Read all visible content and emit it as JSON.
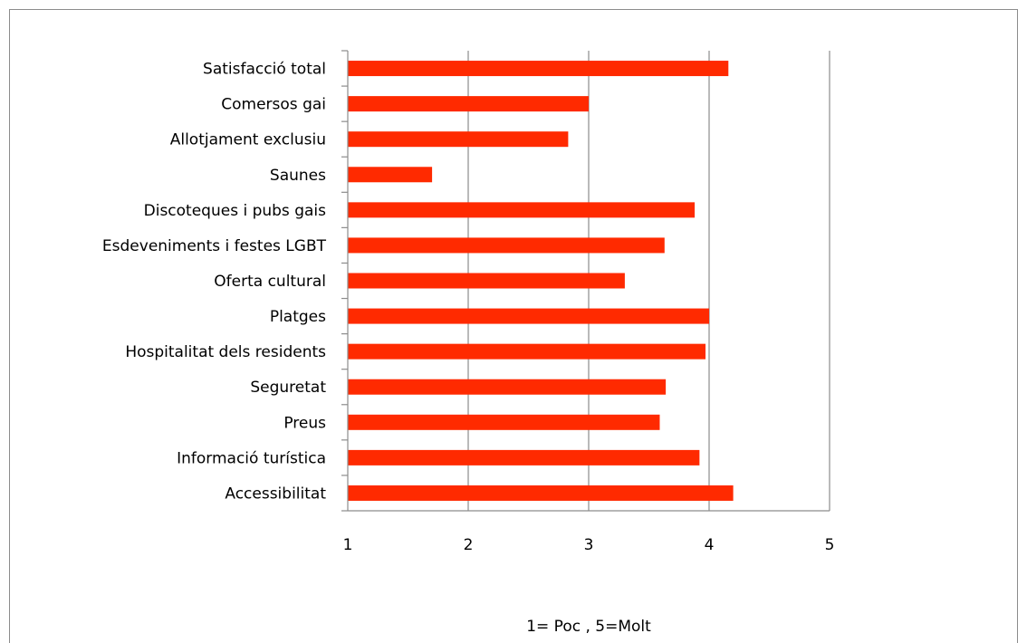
{
  "chart_data": {
    "type": "bar",
    "orientation": "horizontal",
    "categories": [
      "Satisfacció total",
      "Comersos gai",
      "Allotjament exclusiu",
      "Saunes",
      "Discoteques i pubs gais",
      "Esdeveniments i festes LGBT",
      "Oferta cultural",
      "Platges",
      "Hospitalitat dels residents",
      "Seguretat",
      "Preus",
      "Informació turística",
      "Accessibilitat"
    ],
    "values": [
      4.16,
      3.0,
      2.83,
      1.7,
      3.88,
      3.63,
      3.3,
      4.0,
      3.97,
      3.64,
      3.59,
      3.92,
      4.2
    ],
    "xlim": [
      1,
      5
    ],
    "xticks": [
      "1",
      "2",
      "3",
      "4",
      "5"
    ],
    "grid": "vertical",
    "bar_color": "#ff2a00",
    "note": "1= Poc ,  5=Molt"
  }
}
